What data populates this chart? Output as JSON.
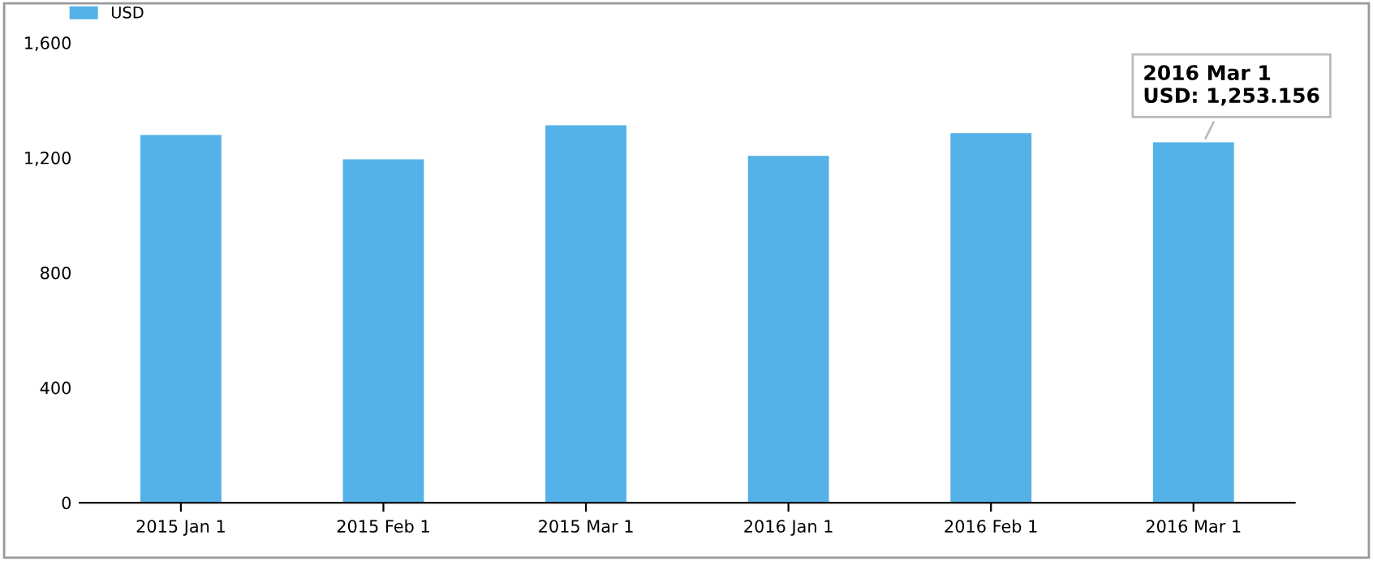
{
  "chart_data": {
    "type": "bar",
    "categories": [
      "2015 Jan 1",
      "2015 Feb 1",
      "2015 Mar 1",
      "2016 Jan 1",
      "2016 Feb 1",
      "2016 Mar 1"
    ],
    "series": [
      {
        "name": "USD",
        "color": "#55b2e8",
        "values": [
          1279,
          1194,
          1313,
          1206,
          1285,
          1253.156
        ]
      }
    ],
    "ylim": [
      0,
      1600
    ],
    "yticks": [
      0,
      {
        "value": 400,
        "label": "400"
      },
      {
        "value": 800,
        "label": "800"
      },
      {
        "value": 1200,
        "label": "1,200"
      },
      {
        "value": 1600,
        "label": "1,600"
      }
    ],
    "legend": "top left",
    "annotations": [
      {
        "text": "2016 Mar 1\nUSD: 1,253.156",
        "x": "2016 Mar 1",
        "y": 1253.156
      }
    ]
  }
}
